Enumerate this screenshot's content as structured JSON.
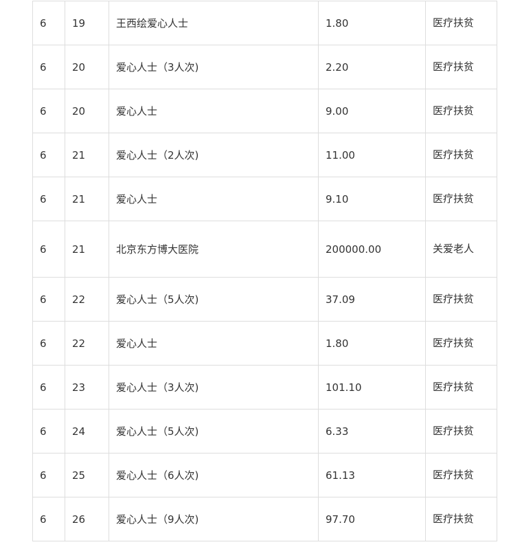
{
  "rows": [
    {
      "month": "6",
      "day": "19",
      "donor": "王西绘爱心人士",
      "amount": "1.80",
      "purpose": "医疗扶贫"
    },
    {
      "month": "6",
      "day": "20",
      "donor": "爱心人士（3人次)",
      "amount": "2.20",
      "purpose": "医疗扶贫"
    },
    {
      "month": "6",
      "day": "20",
      "donor": "爱心人士",
      "amount": "9.00",
      "purpose": "医疗扶贫"
    },
    {
      "month": "6",
      "day": "21",
      "donor": "爱心人士（2人次)",
      "amount": "11.00",
      "purpose": "医疗扶贫"
    },
    {
      "month": "6",
      "day": "21",
      "donor": "爱心人士",
      "amount": "9.10",
      "purpose": "医疗扶贫"
    },
    {
      "month": "6",
      "day": "21",
      "donor": "北京东方博大医院",
      "amount": "200000.00",
      "purpose": "关爱老人"
    },
    {
      "month": "6",
      "day": "22",
      "donor": "爱心人士（5人次)",
      "amount": "37.09",
      "purpose": "医疗扶贫"
    },
    {
      "month": "6",
      "day": "22",
      "donor": "爱心人士",
      "amount": "1.80",
      "purpose": "医疗扶贫"
    },
    {
      "month": "6",
      "day": "23",
      "donor": "爱心人士（3人次)",
      "amount": "101.10",
      "purpose": "医疗扶贫"
    },
    {
      "month": "6",
      "day": "24",
      "donor": "爱心人士（5人次)",
      "amount": "6.33",
      "purpose": "医疗扶贫"
    },
    {
      "month": "6",
      "day": "25",
      "donor": "爱心人士（6人次)",
      "amount": "61.13",
      "purpose": "医疗扶贫"
    },
    {
      "month": "6",
      "day": "26",
      "donor": "爱心人士（9人次)",
      "amount": "97.70",
      "purpose": "医疗扶贫"
    }
  ]
}
